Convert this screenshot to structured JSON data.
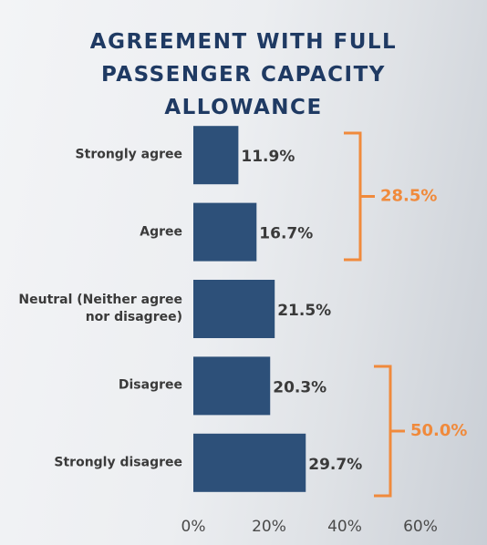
{
  "chart_data": {
    "type": "bar",
    "orientation": "horizontal",
    "title": "AGREEMENT WITH FULL PASSENGER CAPACITY ALLOWANCE",
    "categories": [
      "Strongly agree",
      "Agree",
      "Neutral (Neither agree nor disagree)",
      "Disagree",
      "Strongly disagree"
    ],
    "values": [
      11.9,
      16.7,
      21.5,
      20.3,
      29.7
    ],
    "value_labels": [
      "11.9%",
      "16.7%",
      "21.5%",
      "20.3%",
      "29.7%"
    ],
    "color": "#2d5079",
    "xlim": [
      0,
      60
    ],
    "xticks": [
      {
        "value": 0,
        "label": "0%"
      },
      {
        "value": 20,
        "label": "20%"
      },
      {
        "value": 40,
        "label": "40%"
      },
      {
        "value": 60,
        "label": "60%"
      }
    ],
    "annotations": [
      "28.5%",
      "50.0%"
    ],
    "annotation_color": "#f08a3c"
  }
}
